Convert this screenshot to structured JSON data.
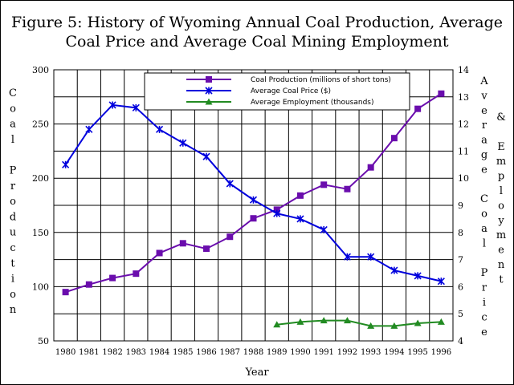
{
  "chart_data": {
    "type": "line",
    "title_lines": [
      "Figure 5:  History of Wyoming Annual Coal Production, Average",
      "Coal Price and Average Coal Mining Employment"
    ],
    "xlabel": "Year",
    "ylabel_left_letters": [
      "C",
      "o",
      "a",
      "l",
      "",
      "P",
      "r",
      "o",
      "d",
      "u",
      "c",
      "t",
      "i",
      "o",
      "n"
    ],
    "ylabel_right1_letters": [
      "A",
      "v",
      "e",
      "r",
      "a",
      "g",
      "e",
      "",
      "C",
      "o",
      "a",
      "l",
      "",
      "P",
      "r",
      "i",
      "c",
      "e"
    ],
    "ylabel_right2_letters": [
      "&",
      "",
      "E",
      "m",
      "p",
      "l",
      "o",
      "y",
      "m",
      "e",
      "n",
      "t"
    ],
    "x": [
      "1980",
      "1981",
      "1982",
      "1983",
      "1984",
      "1985",
      "1986",
      "1987",
      "1988",
      "1989",
      "1990",
      "1991",
      "1992",
      "1993",
      "1994",
      "1995",
      "1996"
    ],
    "ylim_left": [
      50,
      300
    ],
    "yticks_left": [
      "50",
      "100",
      "150",
      "200",
      "250",
      "300"
    ],
    "ylim_right": [
      4,
      14
    ],
    "yticks_right": [
      "4",
      "5",
      "6",
      "7",
      "8",
      "9",
      "10",
      "11",
      "12",
      "13",
      "14"
    ],
    "grid": true,
    "legend_position": "top-center",
    "series": [
      {
        "name": "Coal Production (millions of short tons)",
        "axis": "left",
        "color": "#6a0dad",
        "marker": "square",
        "values": [
          95,
          102,
          108,
          112,
          131,
          140,
          135,
          146,
          163,
          171,
          184,
          194,
          190,
          210,
          237,
          264,
          278
        ]
      },
      {
        "name": "Average Coal Price ($)",
        "axis": "right",
        "color": "#0000dd",
        "marker": "star",
        "values": [
          10.5,
          11.8,
          12.7,
          12.6,
          11.8,
          11.3,
          10.8,
          9.8,
          9.2,
          8.7,
          8.5,
          8.1,
          7.1,
          7.1,
          6.6,
          6.4,
          6.2
        ]
      },
      {
        "name": "Average Employment (thousands)",
        "axis": "right",
        "color": "#228b22",
        "marker": "triangle",
        "values": [
          null,
          null,
          null,
          null,
          null,
          null,
          null,
          null,
          null,
          4.6,
          4.7,
          4.75,
          4.75,
          4.55,
          4.55,
          4.65,
          4.7
        ]
      }
    ]
  }
}
